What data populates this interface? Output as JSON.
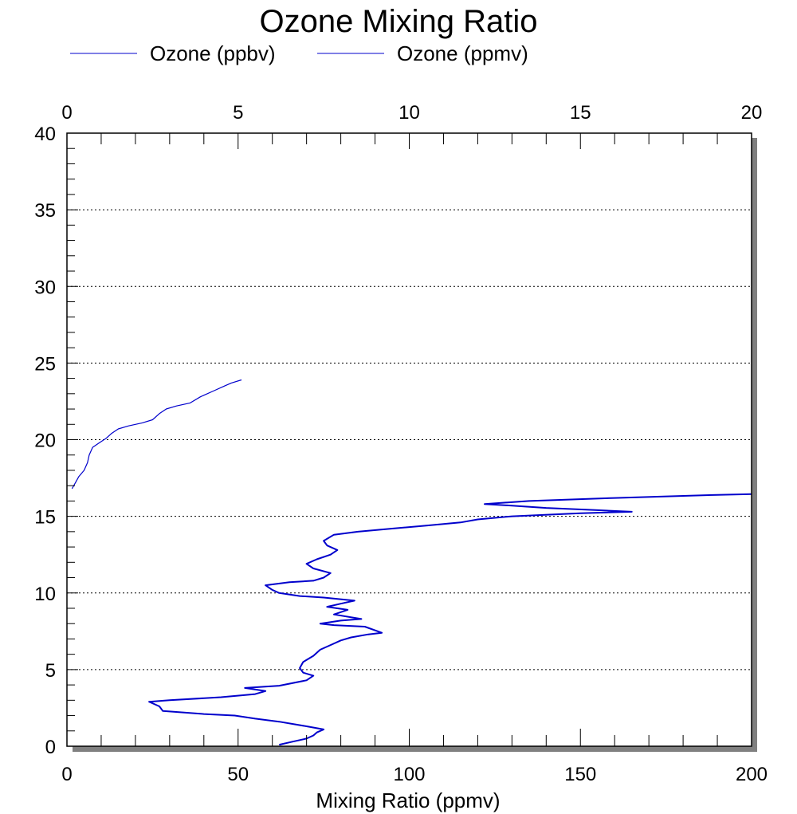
{
  "chart_data": {
    "type": "line",
    "title": "Ozone Mixing Ratio",
    "xlabel": "Mixing Ratio (ppmv)",
    "ylabel": "",
    "x_bottom": {
      "lim": [
        0,
        200
      ],
      "ticks": [
        "0",
        "50",
        "100",
        "150",
        "200"
      ]
    },
    "x_top": {
      "lim": [
        0,
        20
      ],
      "ticks": [
        "0",
        "5",
        "10",
        "15",
        "20"
      ]
    },
    "ylim": [
      0,
      40
    ],
    "y_ticks": [
      "0",
      "5",
      "10",
      "15",
      "20",
      "25",
      "30",
      "35",
      "40"
    ],
    "grid": "horizontal dotted lines at major y ticks",
    "legend": {
      "placement": "top-left, above plot"
    },
    "colors": {
      "series": "#0000cc",
      "shadow": "#808080",
      "frame": "#000000"
    },
    "series": [
      {
        "name": "Ozone (ppbv)",
        "axis": "top",
        "points": [
          [
            0.15,
            16.8
          ],
          [
            0.25,
            17.2
          ],
          [
            0.35,
            17.6
          ],
          [
            0.5,
            18.0
          ],
          [
            0.6,
            18.5
          ],
          [
            0.65,
            19.0
          ],
          [
            0.75,
            19.5
          ],
          [
            0.95,
            19.8
          ],
          [
            1.15,
            20.1
          ],
          [
            1.3,
            20.4
          ],
          [
            1.5,
            20.7
          ],
          [
            1.8,
            20.9
          ],
          [
            2.2,
            21.1
          ],
          [
            2.5,
            21.3
          ],
          [
            2.7,
            21.7
          ],
          [
            2.9,
            22.0
          ],
          [
            3.2,
            22.2
          ],
          [
            3.6,
            22.4
          ],
          [
            3.9,
            22.8
          ],
          [
            4.3,
            23.2
          ],
          [
            4.6,
            23.5
          ],
          [
            4.8,
            23.7
          ],
          [
            5.1,
            23.9
          ]
        ]
      },
      {
        "name": "Ozone (ppmv)",
        "axis": "bottom",
        "points": [
          [
            62,
            0.1
          ],
          [
            66,
            0.3
          ],
          [
            70,
            0.5
          ],
          [
            72,
            0.7
          ],
          [
            73,
            0.9
          ],
          [
            75,
            1.1
          ],
          [
            70,
            1.3
          ],
          [
            62,
            1.6
          ],
          [
            55,
            1.8
          ],
          [
            49,
            2.0
          ],
          [
            40,
            2.1
          ],
          [
            28,
            2.3
          ],
          [
            27,
            2.6
          ],
          [
            24,
            2.9
          ],
          [
            30,
            3.0
          ],
          [
            45,
            3.2
          ],
          [
            55,
            3.4
          ],
          [
            58,
            3.6
          ],
          [
            52,
            3.8
          ],
          [
            62,
            3.95
          ],
          [
            70,
            4.3
          ],
          [
            72,
            4.6
          ],
          [
            69,
            4.8
          ],
          [
            68,
            5.1
          ],
          [
            69,
            5.5
          ],
          [
            72,
            5.9
          ],
          [
            74,
            6.3
          ],
          [
            77,
            6.6
          ],
          [
            80,
            6.9
          ],
          [
            83,
            7.1
          ],
          [
            88,
            7.3
          ],
          [
            92,
            7.4
          ],
          [
            87,
            7.8
          ],
          [
            78,
            7.9
          ],
          [
            74,
            8.0
          ],
          [
            80,
            8.2
          ],
          [
            86,
            8.3
          ],
          [
            78,
            8.6
          ],
          [
            82,
            8.9
          ],
          [
            76,
            9.1
          ],
          [
            80,
            9.3
          ],
          [
            84,
            9.5
          ],
          [
            75,
            9.7
          ],
          [
            68,
            9.8
          ],
          [
            62,
            10.0
          ],
          [
            60,
            10.2
          ],
          [
            58,
            10.5
          ],
          [
            65,
            10.7
          ],
          [
            72,
            10.8
          ],
          [
            75,
            11.0
          ],
          [
            77,
            11.3
          ],
          [
            72,
            11.6
          ],
          [
            70,
            11.9
          ],
          [
            73,
            12.2
          ],
          [
            77,
            12.5
          ],
          [
            79,
            12.8
          ],
          [
            76,
            13.1
          ],
          [
            75,
            13.4
          ],
          [
            78,
            13.8
          ],
          [
            85,
            14.0
          ],
          [
            95,
            14.2
          ],
          [
            105,
            14.4
          ],
          [
            115,
            14.6
          ],
          [
            120,
            14.8
          ],
          [
            130,
            15.0
          ],
          [
            150,
            15.2
          ],
          [
            165,
            15.3
          ],
          [
            155,
            15.4
          ],
          [
            140,
            15.55
          ],
          [
            130,
            15.7
          ],
          [
            122,
            15.8
          ],
          [
            135,
            16.0
          ],
          [
            160,
            16.2
          ],
          [
            190,
            16.4
          ],
          [
            200,
            16.45
          ]
        ]
      }
    ]
  }
}
